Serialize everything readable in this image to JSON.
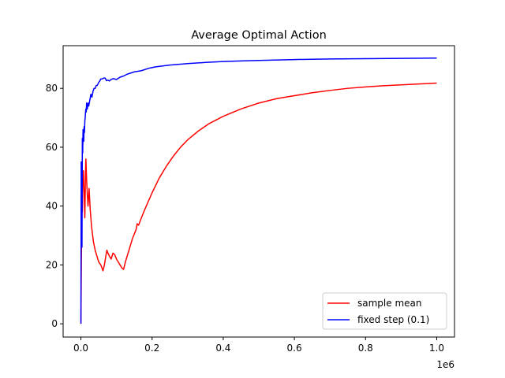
{
  "chart_data": {
    "type": "line",
    "title": "Average Optimal Action",
    "xlabel": "",
    "ylabel": "",
    "x_offset_label": "1e6",
    "xlim": [
      -50000,
      1050000
    ],
    "ylim": [
      -4.5,
      94.5
    ],
    "x_ticks": [
      0,
      200000,
      400000,
      600000,
      800000,
      1000000
    ],
    "x_tick_labels": [
      "0.0",
      "0.2",
      "0.4",
      "0.6",
      "0.8",
      "1.0"
    ],
    "y_ticks": [
      0,
      20,
      40,
      60,
      80
    ],
    "y_tick_labels": [
      "0",
      "20",
      "40",
      "60",
      "80"
    ],
    "grid": false,
    "legend_position": "lower-right",
    "series": [
      {
        "name": "sample mean",
        "color": "#ff0000",
        "points": [
          [
            0,
            0
          ],
          [
            1500,
            25
          ],
          [
            3000,
            44
          ],
          [
            4000,
            38
          ],
          [
            5000,
            47
          ],
          [
            7000,
            52
          ],
          [
            9000,
            45
          ],
          [
            11000,
            36
          ],
          [
            13000,
            52
          ],
          [
            14000,
            56
          ],
          [
            16000,
            49
          ],
          [
            18000,
            44
          ],
          [
            20000,
            40
          ],
          [
            23000,
            46
          ],
          [
            26000,
            39
          ],
          [
            30000,
            33
          ],
          [
            35000,
            28
          ],
          [
            40000,
            25
          ],
          [
            45000,
            23
          ],
          [
            50000,
            21
          ],
          [
            56000,
            20
          ],
          [
            62000,
            18
          ],
          [
            66000,
            20
          ],
          [
            70000,
            23
          ],
          [
            73000,
            25
          ],
          [
            76000,
            24
          ],
          [
            80000,
            23
          ],
          [
            85000,
            22
          ],
          [
            90000,
            24
          ],
          [
            95000,
            23.5
          ],
          [
            100000,
            22
          ],
          [
            105000,
            21
          ],
          [
            110000,
            20
          ],
          [
            115000,
            19
          ],
          [
            120000,
            18.5
          ],
          [
            125000,
            21
          ],
          [
            135000,
            25
          ],
          [
            145000,
            29
          ],
          [
            155000,
            32
          ],
          [
            158000,
            34
          ],
          [
            162000,
            33.5
          ],
          [
            170000,
            36
          ],
          [
            180000,
            39
          ],
          [
            200000,
            44.5
          ],
          [
            220000,
            49.5
          ],
          [
            240000,
            53.5
          ],
          [
            260000,
            57
          ],
          [
            280000,
            60
          ],
          [
            300000,
            62.5
          ],
          [
            330000,
            65.5
          ],
          [
            360000,
            68
          ],
          [
            400000,
            70.5
          ],
          [
            450000,
            73
          ],
          [
            500000,
            75
          ],
          [
            550000,
            76.5
          ],
          [
            600000,
            77.5
          ],
          [
            650000,
            78.5
          ],
          [
            700000,
            79.3
          ],
          [
            750000,
            80
          ],
          [
            800000,
            80.5
          ],
          [
            850000,
            80.9
          ],
          [
            900000,
            81.2
          ],
          [
            950000,
            81.5
          ],
          [
            1000000,
            81.8
          ]
        ]
      },
      {
        "name": "fixed step (0.1)",
        "color": "#0000ff",
        "points": [
          [
            0,
            0
          ],
          [
            800,
            55
          ],
          [
            1600,
            30
          ],
          [
            2400,
            54
          ],
          [
            3000,
            26
          ],
          [
            4000,
            63
          ],
          [
            5000,
            58
          ],
          [
            6000,
            66
          ],
          [
            7000,
            64
          ],
          [
            8000,
            62
          ],
          [
            9000,
            67
          ],
          [
            10000,
            65
          ],
          [
            11000,
            69
          ],
          [
            12000,
            70
          ],
          [
            13000,
            72
          ],
          [
            14000,
            73
          ],
          [
            15000,
            72
          ],
          [
            16000,
            75
          ],
          [
            17000,
            74
          ],
          [
            18000,
            73
          ],
          [
            20000,
            75
          ],
          [
            22000,
            74
          ],
          [
            25000,
            76
          ],
          [
            28000,
            78
          ],
          [
            31000,
            77
          ],
          [
            34000,
            79
          ],
          [
            37000,
            80
          ],
          [
            40000,
            80
          ],
          [
            43000,
            81
          ],
          [
            46000,
            81
          ],
          [
            50000,
            82
          ],
          [
            53000,
            82.5
          ],
          [
            56000,
            83.2
          ],
          [
            60000,
            83.2
          ],
          [
            64000,
            83.5
          ],
          [
            68000,
            83.5
          ],
          [
            72000,
            82.6
          ],
          [
            76000,
            82.8
          ],
          [
            80000,
            82.5
          ],
          [
            85000,
            83
          ],
          [
            90000,
            83.3
          ],
          [
            95000,
            83.2
          ],
          [
            100000,
            83
          ],
          [
            110000,
            83.8
          ],
          [
            120000,
            84.2
          ],
          [
            130000,
            84.8
          ],
          [
            140000,
            85.2
          ],
          [
            150000,
            85.6
          ],
          [
            170000,
            86
          ],
          [
            190000,
            86.8
          ],
          [
            210000,
            87.3
          ],
          [
            250000,
            87.9
          ],
          [
            300000,
            88.4
          ],
          [
            350000,
            88.8
          ],
          [
            400000,
            89.1
          ],
          [
            450000,
            89.3
          ],
          [
            500000,
            89.5
          ],
          [
            600000,
            89.8
          ],
          [
            700000,
            90
          ],
          [
            800000,
            90.1
          ],
          [
            900000,
            90.2
          ],
          [
            1000000,
            90.3
          ]
        ]
      }
    ]
  }
}
